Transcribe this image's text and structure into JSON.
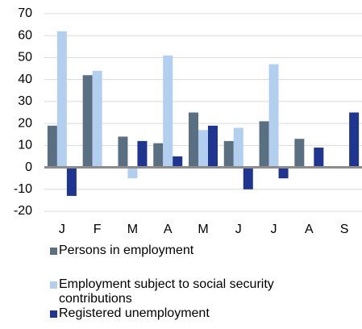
{
  "chart_data": {
    "type": "bar",
    "categories": [
      "J",
      "F",
      "M",
      "A",
      "M",
      "J",
      "J",
      "A",
      "S"
    ],
    "series": [
      {
        "name": "Persons in employment",
        "color": "#5b6f82",
        "values": [
          19,
          42,
          14,
          11,
          25,
          12,
          21,
          13,
          null
        ]
      },
      {
        "name": "Employment subject to social security contributions",
        "color": "#b3cff0",
        "values": [
          62,
          44,
          -5,
          51,
          17,
          18,
          47,
          null,
          null
        ]
      },
      {
        "name": "Registered unemployment",
        "color": "#1f3590",
        "values": [
          -13,
          null,
          12,
          5,
          19,
          -10,
          -5,
          9,
          25
        ]
      }
    ],
    "ylim": [
      -20,
      70
    ],
    "yticks": [
      -20,
      -10,
      0,
      10,
      20,
      30,
      40,
      50,
      60,
      70
    ],
    "grid": true
  }
}
